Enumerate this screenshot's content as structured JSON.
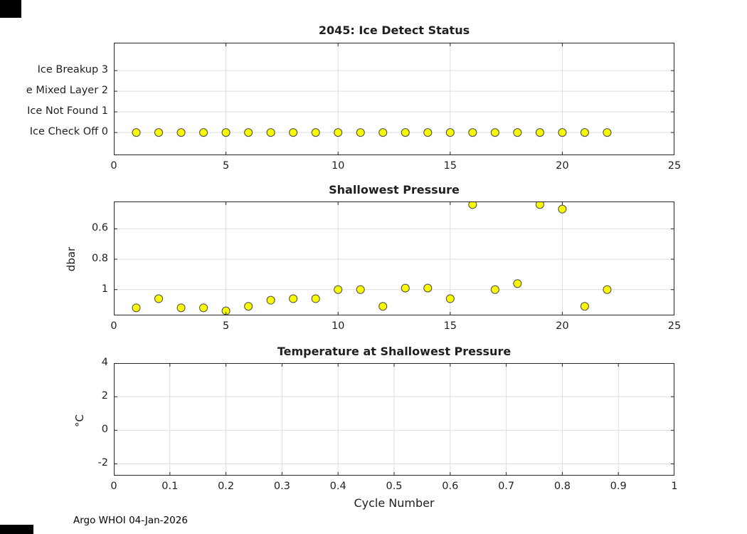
{
  "style": {
    "background": "#ffffff",
    "marker_fill": "#fbfb00",
    "marker_stroke": "#4a4a4a",
    "axis_color": "#262626",
    "grid_color": "#dedede",
    "text_color": "#1f1f1f"
  },
  "footer": {
    "text": "Argo WHOI 04-Jan-2026"
  },
  "chart_data": [
    {
      "type": "scatter",
      "title": "2045: Ice Detect Status",
      "xlabel": "",
      "ylabel": "",
      "xlim": [
        0,
        25
      ],
      "y_top": 4.35,
      "y_bottom": -1.1,
      "grid": true,
      "xticks": [
        {
          "v": 0,
          "label": "0"
        },
        {
          "v": 5,
          "label": "5"
        },
        {
          "v": 10,
          "label": "10"
        },
        {
          "v": 15,
          "label": "15"
        },
        {
          "v": 20,
          "label": "20"
        },
        {
          "v": 25,
          "label": "25"
        }
      ],
      "yticks": [
        {
          "v": 3,
          "label": "Ice Breakup 3"
        },
        {
          "v": 2,
          "label": "e Mixed Layer 2"
        },
        {
          "v": 1,
          "label": "Ice Not Found 1"
        },
        {
          "v": 0,
          "label": "Ice Check Off 0"
        }
      ],
      "x": [
        1,
        2,
        3,
        4,
        5,
        6,
        7,
        8,
        9,
        10,
        11,
        12,
        13,
        14,
        15,
        16,
        17,
        18,
        19,
        20,
        21,
        22
      ],
      "y": [
        0,
        0,
        0,
        0,
        0,
        0,
        0,
        0,
        0,
        0,
        0,
        0,
        0,
        0,
        0,
        0,
        0,
        0,
        0,
        0,
        0,
        0
      ]
    },
    {
      "type": "scatter",
      "title": "Shallowest Pressure",
      "xlabel": "",
      "ylabel": "dbar",
      "xlim": [
        0,
        25
      ],
      "y_top": 0.42,
      "y_bottom": 1.17,
      "y_axis_reversed": true,
      "grid": true,
      "xticks": [
        {
          "v": 0,
          "label": "0"
        },
        {
          "v": 5,
          "label": "5"
        },
        {
          "v": 10,
          "label": "10"
        },
        {
          "v": 15,
          "label": "15"
        },
        {
          "v": 20,
          "label": "20"
        },
        {
          "v": 25,
          "label": "25"
        }
      ],
      "yticks": [
        {
          "v": 0.6,
          "label": "0.6"
        },
        {
          "v": 0.8,
          "label": "0.8"
        },
        {
          "v": 1,
          "label": "1"
        }
      ],
      "x": [
        1,
        2,
        3,
        4,
        5,
        6,
        7,
        8,
        9,
        10,
        11,
        12,
        13,
        14,
        15,
        16,
        17,
        18,
        19,
        20,
        21,
        22
      ],
      "y": [
        1.12,
        1.06,
        1.12,
        1.12,
        1.14,
        1.11,
        1.07,
        1.06,
        1.06,
        1.0,
        1.0,
        1.11,
        0.99,
        0.99,
        1.06,
        0.44,
        1.0,
        0.96,
        0.44,
        0.47,
        1.11,
        1.0
      ]
    },
    {
      "type": "scatter",
      "title": "Temperature at Shallowest Pressure",
      "xlabel": "Cycle Number",
      "ylabel": "°C",
      "xlim": [
        0,
        1
      ],
      "y_top": 4,
      "y_bottom": -2.7,
      "grid": true,
      "xticks": [
        {
          "v": 0,
          "label": "0"
        },
        {
          "v": 0.1,
          "label": "0.1"
        },
        {
          "v": 0.2,
          "label": "0.2"
        },
        {
          "v": 0.3,
          "label": "0.3"
        },
        {
          "v": 0.4,
          "label": "0.4"
        },
        {
          "v": 0.5,
          "label": "0.5"
        },
        {
          "v": 0.6,
          "label": "0.6"
        },
        {
          "v": 0.7,
          "label": "0.7"
        },
        {
          "v": 0.8,
          "label": "0.8"
        },
        {
          "v": 0.9,
          "label": "0.9"
        },
        {
          "v": 1,
          "label": "1"
        }
      ],
      "yticks": [
        {
          "v": 4,
          "label": "4"
        },
        {
          "v": 2,
          "label": "2"
        },
        {
          "v": 0,
          "label": "0"
        },
        {
          "v": -2,
          "label": "-2"
        }
      ],
      "x": [],
      "y": []
    }
  ]
}
